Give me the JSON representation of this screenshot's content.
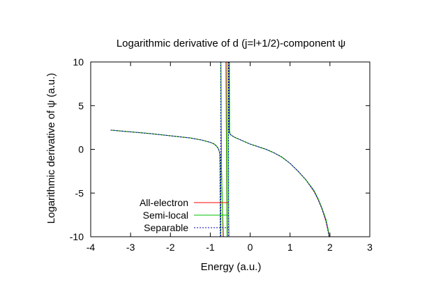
{
  "chart_data": {
    "type": "line",
    "title": "Logarithmic derivative of d (j=l+1/2)-component ψ",
    "xlabel": "Energy (a.u.)",
    "ylabel": "Logarithmic derivative of ψ (a.u.)",
    "xlim": [
      -4,
      3
    ],
    "ylim": [
      -10,
      10
    ],
    "x_ticks": [
      "-4",
      "-3",
      "-2",
      "-1",
      "0",
      "1",
      "2",
      "3"
    ],
    "y_ticks": [
      "10",
      "5",
      "0",
      "-5",
      "-10"
    ],
    "x_tick_values": [
      -4,
      -3,
      -2,
      -1,
      0,
      1,
      2,
      3
    ],
    "y_tick_values": [
      10,
      5,
      0,
      -5,
      -10
    ],
    "legend_position": "bottom-left",
    "grid": false,
    "series": [
      {
        "name": "All-electron",
        "color": "#ff0000",
        "style": "solid",
        "segments": [
          [
            [
              -3.5,
              2.2
            ],
            [
              -3.0,
              2.0
            ],
            [
              -2.5,
              1.8
            ],
            [
              -2.0,
              1.55
            ],
            [
              -1.5,
              1.3
            ],
            [
              -1.2,
              1.05
            ],
            [
              -1.0,
              0.8
            ],
            [
              -0.9,
              0.6
            ],
            [
              -0.85,
              0.4
            ],
            [
              -0.8,
              0.1
            ],
            [
              -0.78,
              -0.15
            ],
            [
              -0.76,
              -0.6
            ],
            [
              -0.75,
              -2.5
            ],
            [
              -0.745,
              -10
            ]
          ],
          [
            [
              -0.735,
              10
            ],
            [
              -0.72,
              -2.0
            ],
            [
              -0.7,
              -6.0
            ],
            [
              -0.68,
              -10
            ]
          ],
          [
            [
              -0.6,
              10
            ],
            [
              -0.58,
              -2.5
            ],
            [
              -0.57,
              -10
            ]
          ],
          [
            [
              -0.53,
              10
            ],
            [
              -0.525,
              2.0
            ],
            [
              -0.5,
              1.7
            ],
            [
              -0.4,
              1.4
            ],
            [
              -0.3,
              1.2
            ],
            [
              -0.2,
              1.0
            ],
            [
              -0.1,
              0.8
            ],
            [
              0.0,
              0.6
            ],
            [
              0.2,
              0.3
            ],
            [
              0.4,
              0.0
            ],
            [
              0.6,
              -0.4
            ],
            [
              0.8,
              -0.9
            ],
            [
              1.0,
              -1.6
            ],
            [
              1.2,
              -2.5
            ],
            [
              1.4,
              -3.5
            ],
            [
              1.6,
              -4.8
            ],
            [
              1.7,
              -5.7
            ],
            [
              1.8,
              -6.8
            ],
            [
              1.9,
              -8.2
            ],
            [
              1.95,
              -9.2
            ],
            [
              1.98,
              -10
            ]
          ]
        ]
      },
      {
        "name": "Semi-local",
        "color": "#00c000",
        "style": "solid",
        "segments": [
          [
            [
              -3.5,
              2.2
            ],
            [
              -3.0,
              2.0
            ],
            [
              -2.5,
              1.8
            ],
            [
              -2.0,
              1.55
            ],
            [
              -1.5,
              1.3
            ],
            [
              -1.2,
              1.05
            ],
            [
              -1.0,
              0.8
            ],
            [
              -0.9,
              0.6
            ],
            [
              -0.85,
              0.4
            ],
            [
              -0.8,
              0.1
            ],
            [
              -0.78,
              -0.15
            ],
            [
              -0.76,
              -0.6
            ],
            [
              -0.75,
              -2.2
            ],
            [
              -0.745,
              -10
            ]
          ],
          [
            [
              -0.735,
              10
            ],
            [
              -0.72,
              -2.0
            ],
            [
              -0.7,
              -6.0
            ],
            [
              -0.67,
              -10
            ]
          ],
          [
            [
              -0.61,
              10
            ],
            [
              -0.6,
              3.0
            ],
            [
              -0.59,
              -3.0
            ],
            [
              -0.58,
              -10
            ]
          ],
          [
            [
              -0.56,
              10
            ],
            [
              -0.54,
              -7.5
            ],
            [
              -0.53,
              -10
            ]
          ],
          [
            [
              -0.52,
              10
            ],
            [
              -0.515,
              2.1
            ],
            [
              -0.5,
              1.7
            ],
            [
              -0.4,
              1.4
            ],
            [
              -0.3,
              1.2
            ],
            [
              -0.2,
              1.0
            ],
            [
              -0.1,
              0.8
            ],
            [
              0.0,
              0.6
            ],
            [
              0.2,
              0.3
            ],
            [
              0.4,
              0.0
            ],
            [
              0.6,
              -0.4
            ],
            [
              0.8,
              -0.9
            ],
            [
              1.0,
              -1.6
            ],
            [
              1.2,
              -2.5
            ],
            [
              1.4,
              -3.5
            ],
            [
              1.6,
              -4.7
            ],
            [
              1.7,
              -5.6
            ],
            [
              1.8,
              -6.7
            ],
            [
              1.9,
              -8.0
            ],
            [
              1.95,
              -9.0
            ],
            [
              1.99,
              -10
            ]
          ]
        ]
      },
      {
        "name": "Separable",
        "color": "#0000c0",
        "style": "dotted",
        "segments": [
          [
            [
              -3.5,
              2.2
            ],
            [
              -3.0,
              2.0
            ],
            [
              -2.5,
              1.8
            ],
            [
              -2.0,
              1.55
            ],
            [
              -1.5,
              1.3
            ],
            [
              -1.2,
              1.05
            ],
            [
              -1.0,
              0.8
            ],
            [
              -0.9,
              0.6
            ],
            [
              -0.85,
              0.4
            ],
            [
              -0.8,
              0.1
            ],
            [
              -0.78,
              -0.15
            ],
            [
              -0.76,
              -0.5
            ],
            [
              -0.75,
              -10
            ]
          ],
          [
            [
              -0.74,
              10
            ],
            [
              -0.735,
              -10
            ]
          ],
          [
            [
              -0.545,
              10
            ],
            [
              -0.54,
              -10
            ]
          ],
          [
            [
              -0.53,
              10
            ],
            [
              -0.525,
              2.0
            ],
            [
              -0.5,
              1.7
            ],
            [
              -0.4,
              1.4
            ],
            [
              -0.3,
              1.2
            ],
            [
              -0.2,
              1.0
            ],
            [
              -0.1,
              0.8
            ],
            [
              0.0,
              0.6
            ],
            [
              0.2,
              0.3
            ],
            [
              0.4,
              0.0
            ],
            [
              0.6,
              -0.4
            ],
            [
              0.8,
              -0.9
            ],
            [
              1.0,
              -1.6
            ],
            [
              1.2,
              -2.5
            ],
            [
              1.4,
              -3.5
            ],
            [
              1.6,
              -4.8
            ],
            [
              1.7,
              -5.7
            ],
            [
              1.8,
              -6.8
            ],
            [
              1.9,
              -8.2
            ],
            [
              1.95,
              -9.3
            ],
            [
              1.98,
              -10
            ]
          ]
        ]
      }
    ]
  }
}
